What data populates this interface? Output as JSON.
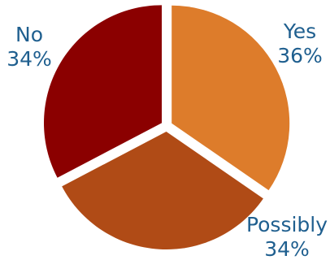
{
  "chart_data": {
    "type": "pie",
    "slices": [
      {
        "label": "Yes",
        "value": 36,
        "value_label": "36%",
        "color": "#dd7c2b"
      },
      {
        "label": "Possibly",
        "value": 34,
        "value_label": "34%",
        "color": "#b04b16"
      },
      {
        "label": "No",
        "value": 34,
        "value_label": "34%",
        "color": "#8b0000"
      }
    ],
    "label_color": "#1f5f8f",
    "legend": "none",
    "start_angle_deg": 0,
    "direction": "clockwise",
    "exploded": true
  }
}
